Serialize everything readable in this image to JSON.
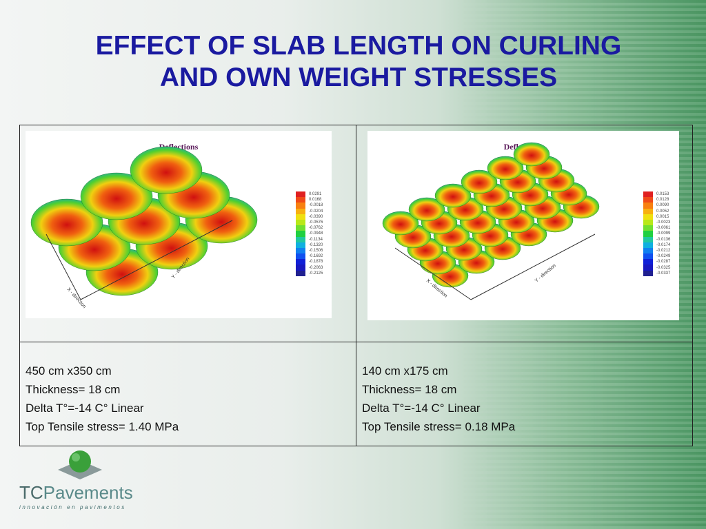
{
  "slide": {
    "title_line1": "EFFECT OF SLAB LENGTH ON CURLING",
    "title_line2": "AND OWN WEIGHT STRESSES"
  },
  "left_panel": {
    "title": "Deflections",
    "legend": [
      "0.0291",
      "0.0168",
      "-0.0018",
      "-0.0204",
      "-0.0390",
      "-0.0576",
      "-0.0762",
      "-0.0948",
      "-0.1134",
      "-0.1320",
      "-0.1506",
      "-0.1692",
      "-0.1878",
      "-0.2063",
      "-0.2125"
    ],
    "axis_y": "Y - direction",
    "axis_x": "X - direction",
    "desc": [
      "450 cm x350 cm",
      "Thickness= 18 cm",
      "Delta T°=-14 C° Linear",
      "Top Tensile stress= 1.40 MPa"
    ]
  },
  "right_panel": {
    "title": "Deflections",
    "legend": [
      "0.0153",
      "0.0128",
      "0.0090",
      "0.0052",
      "0.0015",
      "-0.0023",
      "-0.0061",
      "-0.0099",
      "-0.0136",
      "-0.0174",
      "-0.0212",
      "-0.0249",
      "-0.0287",
      "-0.0325",
      "-0.0337"
    ],
    "axis_y": "Y - direction",
    "axis_x": "X - direction",
    "desc": [
      "140 cm x175 cm",
      "Thickness= 18 cm",
      "Delta T°=-14 C° Linear",
      "Top Tensile stress= 0.18 MPa"
    ]
  },
  "legend_colors": [
    "#e02020",
    "#f04a18",
    "#f88010",
    "#f8b010",
    "#f0e010",
    "#b8e818",
    "#70e030",
    "#20d040",
    "#20c8a0",
    "#10b0e0",
    "#1080f0",
    "#1050f0",
    "#1020d8",
    "#1818c0",
    "#202090"
  ],
  "logo": {
    "brand_tc": "TC",
    "brand_rest": "Pavements",
    "tagline": "innovación en pavimentos"
  }
}
